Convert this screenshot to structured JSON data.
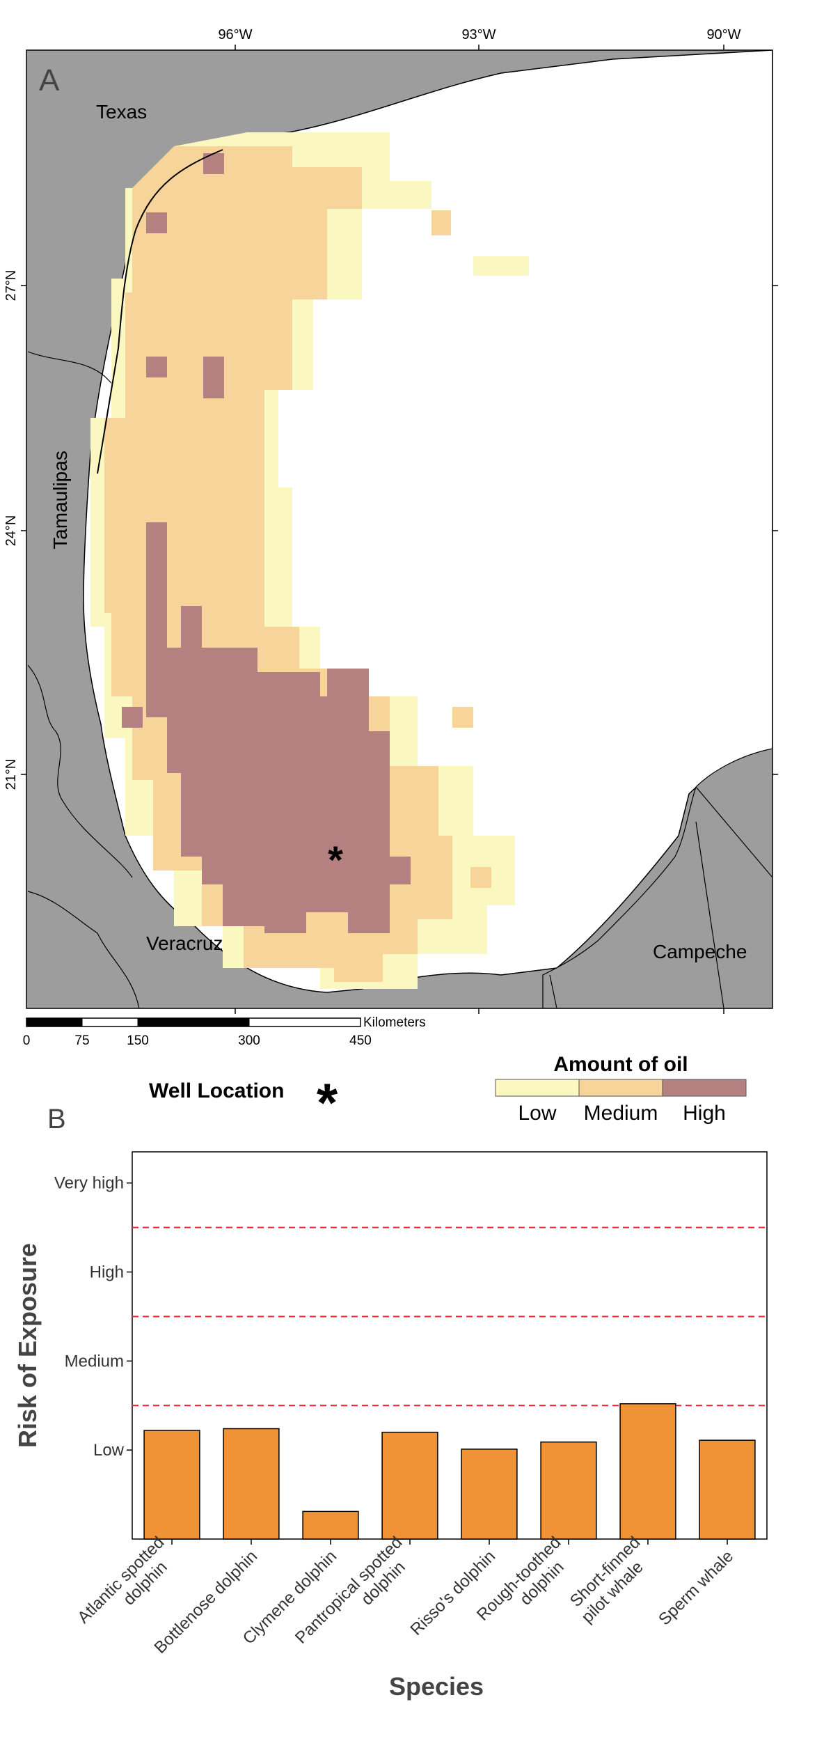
{
  "panel_a": {
    "label": "A",
    "lon_labels": [
      "96°W",
      "93°W",
      "90°W"
    ],
    "lat_labels": [
      "27°N",
      "24°N",
      "21°N"
    ],
    "places": {
      "texas": "Texas",
      "tamaulipas": "Tamaulipas",
      "veracruz": "Veracruz",
      "campeche": "Campeche"
    },
    "scale_bar": {
      "unit": "Kilometers",
      "ticks": [
        "0",
        "75",
        "150",
        "300",
        "450"
      ]
    },
    "well_location_label": "Well Location",
    "legend": {
      "title": "Amount of oil",
      "items": [
        {
          "label": "Low",
          "color": "#fbf7c0"
        },
        {
          "label": "Medium",
          "color": "#f6d49a"
        },
        {
          "label": "High",
          "color": "#b58080"
        }
      ]
    },
    "colors": {
      "land": "#9d9d9d",
      "water": "#ffffff"
    }
  },
  "panel_b": {
    "label": "B",
    "chart_data": {
      "type": "bar",
      "categories": [
        "Atlantic spotted dolphin",
        "Bottlenose dolphin",
        "Clymene dolphin",
        "Pantropical spotted dolphin",
        "Risso's dolphin",
        "Rough-toothed dolphin",
        "Short-finned pilot whale",
        "Sperm whale"
      ],
      "category_labels": [
        [
          "Atlantic spotted",
          "dolphin"
        ],
        [
          "Bottlenose dolphin"
        ],
        [
          "Clymene dolphin"
        ],
        [
          "Pantropical spotted",
          "dolphin"
        ],
        [
          "Risso's dolphin"
        ],
        [
          "Rough-toothed",
          "dolphin"
        ],
        [
          "Short-finned",
          "pilot whale"
        ],
        [
          "Sperm whale"
        ]
      ],
      "values": [
        1.22,
        1.24,
        0.31,
        1.2,
        1.01,
        1.09,
        1.52,
        1.11
      ],
      "xlabel": "Species",
      "ylabel": "Risk of Exposure",
      "ylim": [
        0,
        4.35
      ],
      "y_ticks": [
        {
          "label": "Low",
          "value": 1
        },
        {
          "label": "Medium",
          "value": 2
        },
        {
          "label": "High",
          "value": 3
        },
        {
          "label": "Very high",
          "value": 4
        }
      ],
      "thresholds": [
        1.5,
        2.5,
        3.5
      ],
      "bar_color": "#f09336",
      "threshold_color": "#e8262a",
      "grid": false
    }
  }
}
